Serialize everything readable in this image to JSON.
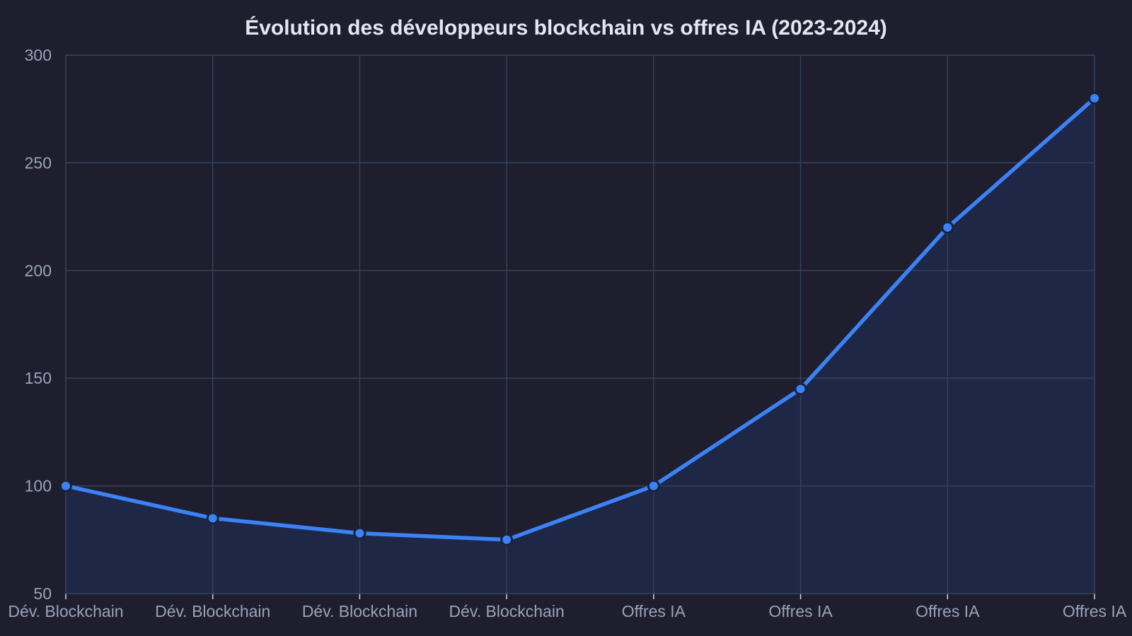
{
  "chart_data": {
    "type": "area",
    "title": "Évolution des développeurs blockchain vs offres IA (2023-2024)",
    "xlabel": "",
    "ylabel": "",
    "categories": [
      "Dév. Blockchain",
      "Dév. Blockchain",
      "Dév. Blockchain",
      "Dév. Blockchain",
      "Offres IA",
      "Offres IA",
      "Offres IA",
      "Offres IA"
    ],
    "series": [
      {
        "values": [
          100,
          85,
          78,
          75,
          100,
          145,
          220,
          280
        ]
      }
    ],
    "ylim": [
      50,
      300
    ],
    "yticks": [
      "50",
      "100",
      "150",
      "200",
      "250",
      "300"
    ],
    "grid": true,
    "legend": "none",
    "colors": {
      "background": "#1e1e2e",
      "line": "#3b82f6",
      "fill": "#1f2a4a",
      "grid": "#34405a",
      "marker_stroke": "#1a2238"
    }
  }
}
